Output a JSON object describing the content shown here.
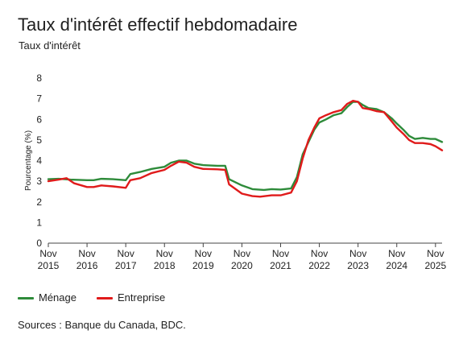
{
  "title": "Taux d'intérêt effectif hebdomadaire",
  "subtitle": "Taux d'intérêt",
  "source": "Sources : Banque du Canada, BDC.",
  "legend": [
    {
      "label": "Ménage",
      "color": "#2e8b3a"
    },
    {
      "label": "Entreprise",
      "color": "#e01b1b"
    }
  ],
  "chart_data": {
    "type": "line",
    "title": "Taux d'intérêt effectif hebdomadaire",
    "ylabel": "Pourcentage (%)",
    "xlabel": "",
    "ylim": [
      0,
      8
    ],
    "yticks": [
      0,
      1,
      2,
      3,
      4,
      5,
      6,
      7,
      8
    ],
    "grid": false,
    "legend_position": "bottom",
    "x_ticks": [
      {
        "x": 2015.83,
        "month": "Nov",
        "year": "2015"
      },
      {
        "x": 2016.83,
        "month": "Nov",
        "year": "2016"
      },
      {
        "x": 2017.83,
        "month": "Nov",
        "year": "2017"
      },
      {
        "x": 2018.83,
        "month": "Nov",
        "year": "2018"
      },
      {
        "x": 2019.83,
        "month": "Nov",
        "year": "2019"
      },
      {
        "x": 2020.83,
        "month": "Nov",
        "year": "2020"
      },
      {
        "x": 2021.83,
        "month": "Nov",
        "year": "2021"
      },
      {
        "x": 2022.83,
        "month": "Nov",
        "year": "2022"
      },
      {
        "x": 2023.83,
        "month": "Nov",
        "year": "2023"
      },
      {
        "x": 2024.83,
        "month": "Nov",
        "year": "2024"
      },
      {
        "x": 2025.83,
        "month": "Nov",
        "year": "2025"
      }
    ],
    "xlim": [
      2015.83,
      2026.0
    ],
    "series": [
      {
        "name": "Ménage",
        "color": "#2e8b3a",
        "points": [
          [
            2015.83,
            3.1
          ],
          [
            2016.1,
            3.12
          ],
          [
            2016.4,
            3.08
          ],
          [
            2016.83,
            3.05
          ],
          [
            2017.0,
            3.05
          ],
          [
            2017.2,
            3.12
          ],
          [
            2017.5,
            3.1
          ],
          [
            2017.83,
            3.05
          ],
          [
            2017.95,
            3.35
          ],
          [
            2018.2,
            3.45
          ],
          [
            2018.5,
            3.6
          ],
          [
            2018.83,
            3.7
          ],
          [
            2019.0,
            3.9
          ],
          [
            2019.2,
            4.0
          ],
          [
            2019.4,
            4.0
          ],
          [
            2019.6,
            3.85
          ],
          [
            2019.83,
            3.78
          ],
          [
            2020.2,
            3.75
          ],
          [
            2020.4,
            3.75
          ],
          [
            2020.5,
            3.1
          ],
          [
            2020.83,
            2.8
          ],
          [
            2021.1,
            2.62
          ],
          [
            2021.4,
            2.58
          ],
          [
            2021.6,
            2.62
          ],
          [
            2021.83,
            2.6
          ],
          [
            2022.1,
            2.65
          ],
          [
            2022.25,
            3.2
          ],
          [
            2022.4,
            4.3
          ],
          [
            2022.55,
            4.9
          ],
          [
            2022.7,
            5.5
          ],
          [
            2022.83,
            5.85
          ],
          [
            2023.0,
            6.0
          ],
          [
            2023.2,
            6.2
          ],
          [
            2023.4,
            6.3
          ],
          [
            2023.55,
            6.6
          ],
          [
            2023.7,
            6.85
          ],
          [
            2023.83,
            6.85
          ],
          [
            2023.95,
            6.7
          ],
          [
            2024.1,
            6.55
          ],
          [
            2024.3,
            6.5
          ],
          [
            2024.5,
            6.35
          ],
          [
            2024.7,
            6.05
          ],
          [
            2024.83,
            5.8
          ],
          [
            2025.0,
            5.5
          ],
          [
            2025.15,
            5.2
          ],
          [
            2025.3,
            5.05
          ],
          [
            2025.5,
            5.1
          ],
          [
            2025.7,
            5.05
          ],
          [
            2025.83,
            5.05
          ],
          [
            2026.0,
            4.9
          ]
        ]
      },
      {
        "name": "Entreprise",
        "color": "#e01b1b",
        "points": [
          [
            2015.83,
            3.0
          ],
          [
            2016.1,
            3.08
          ],
          [
            2016.3,
            3.15
          ],
          [
            2016.5,
            2.9
          ],
          [
            2016.83,
            2.72
          ],
          [
            2017.0,
            2.72
          ],
          [
            2017.2,
            2.8
          ],
          [
            2017.5,
            2.75
          ],
          [
            2017.83,
            2.68
          ],
          [
            2017.95,
            3.05
          ],
          [
            2018.2,
            3.15
          ],
          [
            2018.5,
            3.4
          ],
          [
            2018.83,
            3.55
          ],
          [
            2019.0,
            3.75
          ],
          [
            2019.2,
            3.95
          ],
          [
            2019.4,
            3.9
          ],
          [
            2019.6,
            3.7
          ],
          [
            2019.83,
            3.6
          ],
          [
            2020.2,
            3.58
          ],
          [
            2020.4,
            3.55
          ],
          [
            2020.5,
            2.85
          ],
          [
            2020.83,
            2.4
          ],
          [
            2021.1,
            2.28
          ],
          [
            2021.3,
            2.25
          ],
          [
            2021.6,
            2.32
          ],
          [
            2021.83,
            2.32
          ],
          [
            2022.1,
            2.45
          ],
          [
            2022.25,
            3.0
          ],
          [
            2022.4,
            4.1
          ],
          [
            2022.55,
            5.0
          ],
          [
            2022.7,
            5.6
          ],
          [
            2022.83,
            6.05
          ],
          [
            2023.0,
            6.2
          ],
          [
            2023.2,
            6.35
          ],
          [
            2023.4,
            6.45
          ],
          [
            2023.55,
            6.75
          ],
          [
            2023.7,
            6.9
          ],
          [
            2023.83,
            6.85
          ],
          [
            2023.95,
            6.55
          ],
          [
            2024.1,
            6.5
          ],
          [
            2024.3,
            6.4
          ],
          [
            2024.5,
            6.35
          ],
          [
            2024.7,
            5.9
          ],
          [
            2024.83,
            5.6
          ],
          [
            2025.0,
            5.3
          ],
          [
            2025.15,
            5.0
          ],
          [
            2025.3,
            4.85
          ],
          [
            2025.5,
            4.85
          ],
          [
            2025.7,
            4.8
          ],
          [
            2025.83,
            4.7
          ],
          [
            2026.0,
            4.5
          ]
        ]
      }
    ]
  }
}
